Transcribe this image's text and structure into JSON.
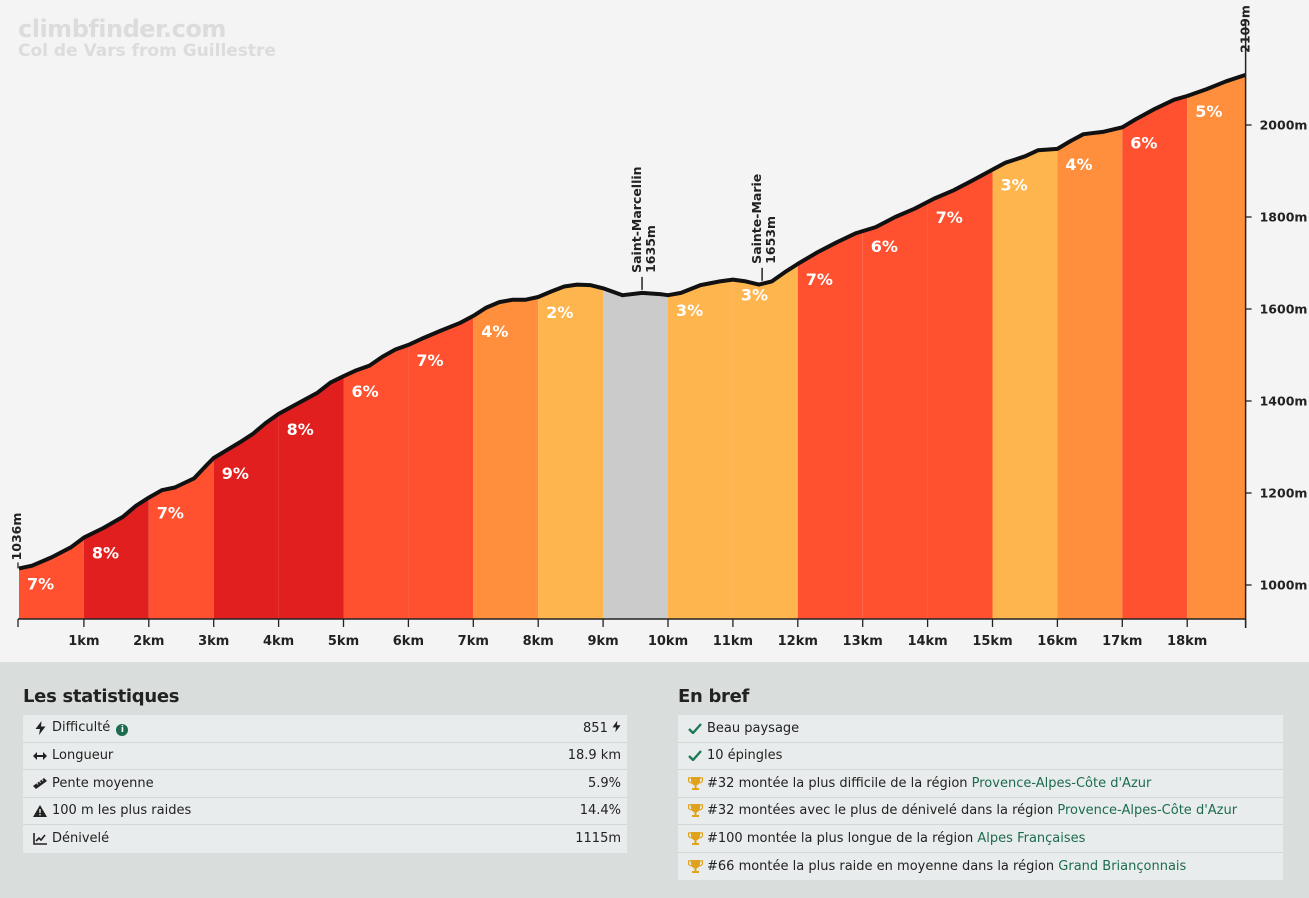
{
  "brand": {
    "site": "climbfinder.com",
    "subtitle": "Col de Vars from Guillestre"
  },
  "chart_data": {
    "type": "area",
    "start_label": "1036m",
    "end_label": "2109m",
    "x_ticks": [
      "1km",
      "2km",
      "3km",
      "4km",
      "5km",
      "6km",
      "7km",
      "8km",
      "9km",
      "10km",
      "11km",
      "12km",
      "13km",
      "14km",
      "15km",
      "16km",
      "17km",
      "18km"
    ],
    "y_ticks": [
      "1000m",
      "1200m",
      "1400m",
      "1600m",
      "1800m",
      "2000m"
    ],
    "y_tick_values": [
      1000,
      1200,
      1400,
      1600,
      1800,
      2000
    ],
    "ylim": [
      900,
      2109
    ],
    "xlim": [
      0,
      18.9
    ],
    "segments": [
      {
        "label": "7%",
        "color": "#ff5130"
      },
      {
        "label": "8%",
        "color": "#e21f1f"
      },
      {
        "label": "7%",
        "color": "#ff5130"
      },
      {
        "label": "9%",
        "color": "#e21f1f"
      },
      {
        "label": "8%",
        "color": "#e21f1f"
      },
      {
        "label": "6%",
        "color": "#ff5130"
      },
      {
        "label": "7%",
        "color": "#ff5130"
      },
      {
        "label": "4%",
        "color": "#ff8f3c"
      },
      {
        "label": "2%",
        "color": "#ffb54d"
      },
      {
        "label": "",
        "color": "#cbcbcb"
      },
      {
        "label": "3%",
        "color": "#ffb54d"
      },
      {
        "label": "3%",
        "color": "#ffb54d"
      },
      {
        "label": "7%",
        "color": "#ff5130"
      },
      {
        "label": "6%",
        "color": "#ff5130"
      },
      {
        "label": "7%",
        "color": "#ff5130"
      },
      {
        "label": "3%",
        "color": "#ffb54d"
      },
      {
        "label": "4%",
        "color": "#ff8f3c"
      },
      {
        "label": "6%",
        "color": "#ff5130"
      },
      {
        "label": "5%",
        "color": "#ff8f3c"
      }
    ],
    "profile": [
      [
        0,
        1036
      ],
      [
        0.2,
        1042
      ],
      [
        0.5,
        1060
      ],
      [
        0.8,
        1082
      ],
      [
        1.0,
        1103
      ],
      [
        1.3,
        1124
      ],
      [
        1.6,
        1148
      ],
      [
        1.8,
        1172
      ],
      [
        2.0,
        1190
      ],
      [
        2.2,
        1206
      ],
      [
        2.4,
        1212
      ],
      [
        2.7,
        1232
      ],
      [
        2.9,
        1262
      ],
      [
        3.0,
        1276
      ],
      [
        3.2,
        1293
      ],
      [
        3.4,
        1310
      ],
      [
        3.6,
        1328
      ],
      [
        3.8,
        1352
      ],
      [
        4.0,
        1372
      ],
      [
        4.3,
        1395
      ],
      [
        4.6,
        1418
      ],
      [
        4.8,
        1440
      ],
      [
        5.0,
        1454
      ],
      [
        5.2,
        1467
      ],
      [
        5.4,
        1477
      ],
      [
        5.6,
        1496
      ],
      [
        5.8,
        1512
      ],
      [
        6.0,
        1522
      ],
      [
        6.2,
        1535
      ],
      [
        6.5,
        1553
      ],
      [
        6.8,
        1570
      ],
      [
        7.0,
        1585
      ],
      [
        7.2,
        1603
      ],
      [
        7.4,
        1615
      ],
      [
        7.6,
        1620
      ],
      [
        7.8,
        1620
      ],
      [
        8.0,
        1626
      ],
      [
        8.2,
        1638
      ],
      [
        8.4,
        1649
      ],
      [
        8.6,
        1653
      ],
      [
        8.8,
        1652
      ],
      [
        9.0,
        1645
      ],
      [
        9.3,
        1630
      ],
      [
        9.6,
        1635
      ],
      [
        9.9,
        1632
      ],
      [
        10.0,
        1630
      ],
      [
        10.2,
        1635
      ],
      [
        10.5,
        1652
      ],
      [
        10.8,
        1660
      ],
      [
        11.0,
        1664
      ],
      [
        11.2,
        1660
      ],
      [
        11.4,
        1653
      ],
      [
        11.6,
        1660
      ],
      [
        11.8,
        1680
      ],
      [
        12.0,
        1698
      ],
      [
        12.3,
        1723
      ],
      [
        12.6,
        1745
      ],
      [
        12.9,
        1765
      ],
      [
        13.2,
        1778
      ],
      [
        13.5,
        1800
      ],
      [
        13.8,
        1818
      ],
      [
        14.1,
        1840
      ],
      [
        14.4,
        1858
      ],
      [
        14.7,
        1880
      ],
      [
        15.0,
        1903
      ],
      [
        15.2,
        1918
      ],
      [
        15.5,
        1932
      ],
      [
        15.7,
        1945
      ],
      [
        16.0,
        1948
      ],
      [
        16.2,
        1965
      ],
      [
        16.4,
        1980
      ],
      [
        16.7,
        1985
      ],
      [
        17.0,
        1995
      ],
      [
        17.2,
        2012
      ],
      [
        17.5,
        2035
      ],
      [
        17.8,
        2055
      ],
      [
        18.0,
        2063
      ],
      [
        18.3,
        2078
      ],
      [
        18.6,
        2095
      ],
      [
        18.9,
        2109
      ]
    ],
    "annotations": [
      {
        "x": 9.6,
        "elev": 1635,
        "name": "Saint-Marcellin",
        "label": "1635m"
      },
      {
        "x": 11.45,
        "elev": 1653,
        "name": "Sainte-Marie",
        "label": "1653m"
      }
    ]
  },
  "stats": {
    "title": "Les statistiques",
    "rows": [
      {
        "icon": "bolt-icon",
        "label": "Difficulté",
        "value": "851"
      },
      {
        "icon": "arrows-horizontal-icon",
        "label": "Longueur",
        "value": "18.9 km"
      },
      {
        "icon": "ruler-icon",
        "label": "Pente moyenne",
        "value": "5.9%"
      },
      {
        "icon": "warning-icon",
        "label": "100 m les plus raides",
        "value": "14.4%"
      },
      {
        "icon": "chart-line-icon",
        "label": "Dénivelé",
        "value": "1115m"
      }
    ]
  },
  "brief": {
    "title": "En bref",
    "rows": [
      {
        "icon": "check-icon",
        "text": "Beau paysage",
        "region": ""
      },
      {
        "icon": "check-icon",
        "text": "10 épingles",
        "region": ""
      },
      {
        "icon": "trophy-icon",
        "text": "#32 montée la plus difficile de la région ",
        "region": "Provence-Alpes-Côte d'Azur"
      },
      {
        "icon": "trophy-icon",
        "text": "#32 montées avec le plus de dénivelé dans la région ",
        "region": "Provence-Alpes-Côte d'Azur"
      },
      {
        "icon": "trophy-icon",
        "text": "#100 montée la plus longue de la région ",
        "region": "Alpes Françaises"
      },
      {
        "icon": "trophy-icon",
        "text": "#66 montée la plus raide en moyenne dans la région ",
        "region": "Grand Briançonnais"
      }
    ]
  }
}
